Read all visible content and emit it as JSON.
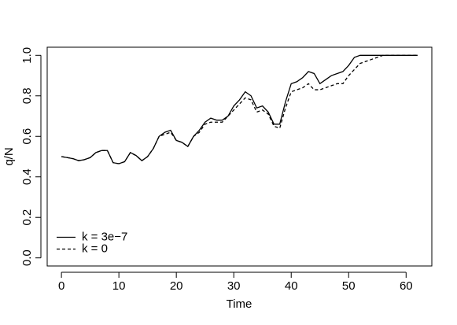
{
  "chart_data": {
    "type": "line",
    "xlabel": "Time",
    "ylabel": "q/N",
    "x": [
      0,
      1,
      2,
      3,
      4,
      5,
      6,
      7,
      8,
      9,
      10,
      11,
      12,
      13,
      14,
      15,
      16,
      17,
      18,
      19,
      20,
      21,
      22,
      23,
      24,
      25,
      26,
      27,
      28,
      29,
      30,
      31,
      32,
      33,
      34,
      35,
      36,
      37,
      38,
      39,
      40,
      41,
      42,
      43,
      44,
      45,
      46,
      47,
      48,
      49,
      50,
      51,
      52,
      53,
      54,
      55,
      56,
      57,
      58,
      59,
      60,
      61,
      62
    ],
    "series": [
      {
        "name": "k = 3e−7",
        "color": "#000000",
        "linestyle": "solid",
        "values": [
          0.5,
          0.495,
          0.49,
          0.48,
          0.485,
          0.495,
          0.52,
          0.53,
          0.53,
          0.47,
          0.465,
          0.475,
          0.52,
          0.505,
          0.48,
          0.5,
          0.54,
          0.6,
          0.62,
          0.63,
          0.58,
          0.57,
          0.55,
          0.6,
          0.63,
          0.67,
          0.69,
          0.68,
          0.68,
          0.7,
          0.75,
          0.78,
          0.82,
          0.8,
          0.74,
          0.75,
          0.72,
          0.66,
          0.66,
          0.77,
          0.86,
          0.87,
          0.89,
          0.92,
          0.91,
          0.86,
          0.88,
          0.9,
          0.91,
          0.92,
          0.95,
          0.99,
          1.0,
          1.0,
          1.0,
          1.0,
          1.0,
          1.0,
          1.0,
          1.0,
          1.0,
          1.0,
          1.0
        ]
      },
      {
        "name": "k = 0",
        "color": "#000000",
        "linestyle": "dashed",
        "values": [
          0.5,
          0.495,
          0.49,
          0.48,
          0.485,
          0.495,
          0.52,
          0.53,
          0.53,
          0.47,
          0.465,
          0.475,
          0.52,
          0.505,
          0.48,
          0.5,
          0.54,
          0.6,
          0.61,
          0.62,
          0.58,
          0.57,
          0.55,
          0.6,
          0.62,
          0.66,
          0.67,
          0.67,
          0.67,
          0.7,
          0.73,
          0.76,
          0.79,
          0.78,
          0.72,
          0.73,
          0.71,
          0.65,
          0.64,
          0.74,
          0.82,
          0.83,
          0.84,
          0.86,
          0.83,
          0.83,
          0.84,
          0.85,
          0.86,
          0.86,
          0.9,
          0.93,
          0.96,
          0.97,
          0.98,
          0.99,
          1.0,
          1.0,
          1.0,
          1.0,
          1.0,
          1.0,
          1.0
        ]
      }
    ],
    "xlim": [
      -2.48,
      64.48
    ],
    "xticks": [
      0,
      10,
      20,
      30,
      40,
      50,
      60
    ],
    "ylim": [
      -0.04,
      1.04
    ],
    "yticks": [
      {
        "value": 0,
        "label": "0.0"
      },
      0.2,
      0.4,
      0.6,
      0.8,
      {
        "value": 1,
        "label": "1.0"
      }
    ],
    "legend": "bottom-left",
    "grid": false
  }
}
